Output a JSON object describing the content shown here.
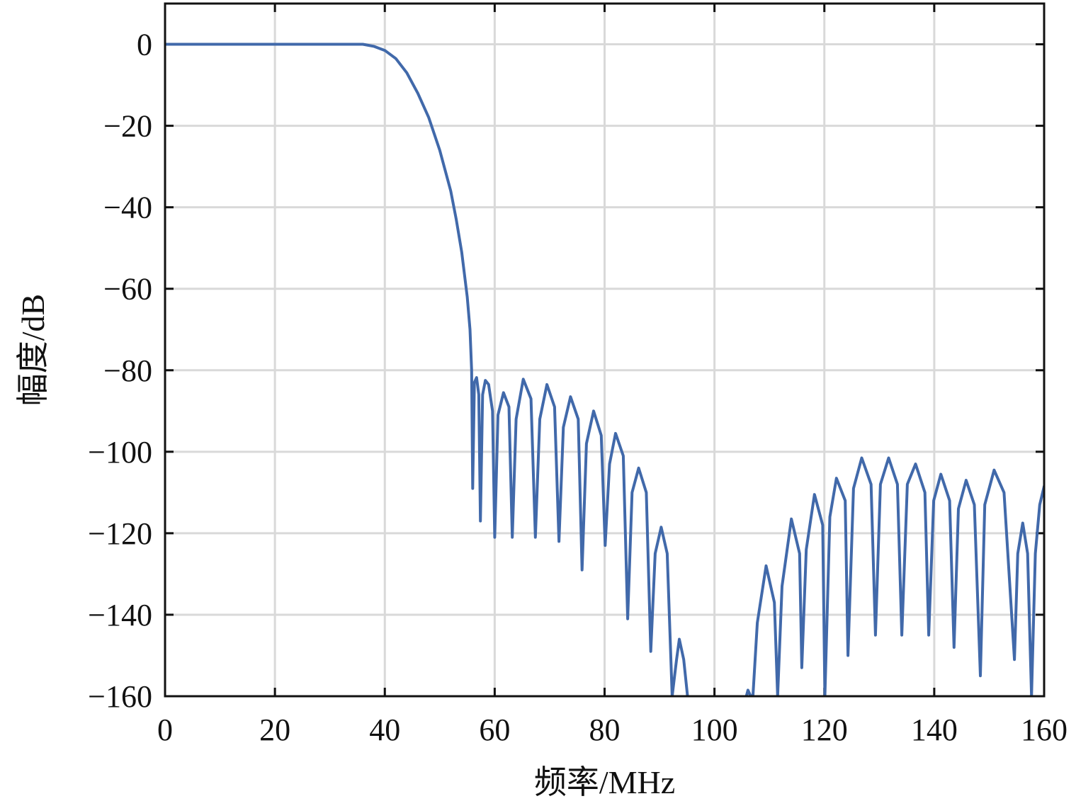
{
  "chart_data": {
    "type": "line",
    "xlabel": "频率/MHz",
    "ylabel": "幅度/dB",
    "xlim": [
      0,
      160
    ],
    "ylim": [
      -160,
      10
    ],
    "xticks": [
      0,
      20,
      40,
      60,
      80,
      100,
      120,
      140,
      160
    ],
    "yticks": [
      0,
      -20,
      -40,
      -60,
      -80,
      -100,
      -120,
      -140,
      -160
    ],
    "xtick_labels": [
      "0",
      "20",
      "40",
      "60",
      "80",
      "100",
      "120",
      "140",
      "160"
    ],
    "ytick_labels": [
      "0",
      "−20",
      "−40",
      "−60",
      "−80",
      "−100",
      "−120",
      "−140",
      "−160"
    ],
    "grid": true,
    "line_color": "#4169aa",
    "series": [
      {
        "values": [
          [
            0,
            0
          ],
          [
            10,
            0
          ],
          [
            20,
            0
          ],
          [
            30,
            0
          ],
          [
            36,
            0
          ],
          [
            38,
            -0.5
          ],
          [
            40,
            -1.5
          ],
          [
            42,
            -3.5
          ],
          [
            44,
            -7
          ],
          [
            46,
            -12
          ],
          [
            48,
            -18
          ],
          [
            50,
            -26
          ],
          [
            52,
            -36
          ],
          [
            53,
            -43
          ],
          [
            54,
            -51
          ],
          [
            55,
            -62
          ],
          [
            55.5,
            -70
          ],
          [
            55.8,
            -80
          ],
          [
            56.0,
            -109
          ],
          [
            56.3,
            -83
          ],
          [
            56.7,
            -81.8
          ],
          [
            57.1,
            -86
          ],
          [
            57.4,
            -117
          ],
          [
            57.8,
            -86
          ],
          [
            58.3,
            -82.5
          ],
          [
            58.9,
            -83.5
          ],
          [
            59.6,
            -90
          ],
          [
            60.0,
            -121
          ],
          [
            60.6,
            -91
          ],
          [
            61.6,
            -85.5
          ],
          [
            62.6,
            -89
          ],
          [
            63.2,
            -121
          ],
          [
            63.9,
            -92
          ],
          [
            65.2,
            -82.2
          ],
          [
            66.6,
            -87
          ],
          [
            67.4,
            -121
          ],
          [
            68.2,
            -92
          ],
          [
            69.5,
            -83.5
          ],
          [
            70.9,
            -89
          ],
          [
            71.7,
            -122
          ],
          [
            72.5,
            -94
          ],
          [
            73.8,
            -86.5
          ],
          [
            75.2,
            -92
          ],
          [
            75.9,
            -129
          ],
          [
            76.7,
            -98
          ],
          [
            78.0,
            -90
          ],
          [
            79.4,
            -96
          ],
          [
            80.1,
            -123
          ],
          [
            80.9,
            -103
          ],
          [
            82.0,
            -95.5
          ],
          [
            83.4,
            -101
          ],
          [
            84.2,
            -141
          ],
          [
            85.0,
            -110
          ],
          [
            86.2,
            -104
          ],
          [
            87.6,
            -110
          ],
          [
            88.4,
            -149
          ],
          [
            89.2,
            -125
          ],
          [
            90.3,
            -118.5
          ],
          [
            91.4,
            -125
          ],
          [
            92.3,
            -160
          ],
          [
            93.1,
            -151
          ],
          [
            93.6,
            -146
          ],
          [
            94.4,
            -151
          ],
          [
            95.1,
            -160
          ],
          [
            105.8,
            -160
          ],
          [
            106.1,
            -158.5
          ],
          [
            106.6,
            -160
          ],
          [
            107.0,
            -160
          ],
          [
            107.8,
            -142
          ],
          [
            109.4,
            -128
          ],
          [
            110.9,
            -137
          ],
          [
            111.5,
            -160
          ],
          [
            112.3,
            -133
          ],
          [
            114.0,
            -116.5
          ],
          [
            115.5,
            -125
          ],
          [
            115.9,
            -153
          ],
          [
            116.7,
            -124
          ],
          [
            118.2,
            -110.5
          ],
          [
            119.7,
            -118
          ],
          [
            120.1,
            -160
          ],
          [
            121.0,
            -116
          ],
          [
            122.2,
            -106.5
          ],
          [
            123.8,
            -112
          ],
          [
            124.3,
            -150
          ],
          [
            125.3,
            -109
          ],
          [
            126.8,
            -101.5
          ],
          [
            128.5,
            -108
          ],
          [
            129.3,
            -145
          ],
          [
            130.2,
            -108
          ],
          [
            131.7,
            -101.5
          ],
          [
            133.3,
            -108
          ],
          [
            134.1,
            -145
          ],
          [
            135.1,
            -108
          ],
          [
            136.6,
            -103
          ],
          [
            138.3,
            -110
          ],
          [
            139.0,
            -145
          ],
          [
            139.9,
            -112
          ],
          [
            141.2,
            -105.5
          ],
          [
            142.8,
            -112
          ],
          [
            143.6,
            -148
          ],
          [
            144.4,
            -114
          ],
          [
            145.8,
            -107
          ],
          [
            147.3,
            -113
          ],
          [
            148.4,
            -155
          ],
          [
            149.2,
            -113
          ],
          [
            150.9,
            -104.5
          ],
          [
            152.7,
            -110
          ],
          [
            154.6,
            -151
          ],
          [
            155.2,
            -125
          ],
          [
            156.1,
            -117.5
          ],
          [
            157.0,
            -125
          ],
          [
            157.7,
            -160
          ],
          [
            158.4,
            -125
          ],
          [
            159.2,
            -113
          ],
          [
            160,
            -108.5
          ]
        ]
      }
    ]
  }
}
